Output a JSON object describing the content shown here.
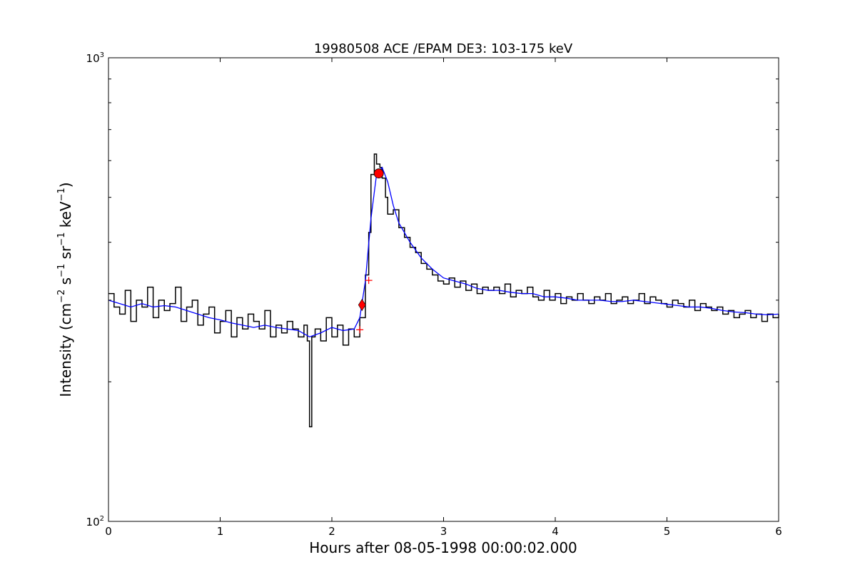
{
  "chart_data": {
    "type": "line",
    "title": "19980508 ACE /EPAM DE3: 103-175 keV",
    "xlabel": "Hours after 08-05-1998 00:00:02.000",
    "ylabel": {
      "base": "Intensity (cm",
      "exp1": "−2",
      "s": " s",
      "exp2": "−1",
      "sr": " sr",
      "exp3": "−1",
      "kev": " keV",
      "exp4": "−1",
      "close": ")"
    },
    "xlim": [
      0,
      6
    ],
    "ylim": [
      100,
      1000
    ],
    "yscale": "log",
    "grid": false,
    "x_ticks": [
      0,
      1,
      2,
      3,
      4,
      5,
      6
    ],
    "x_tick_labels": [
      "0",
      "1",
      "2",
      "3",
      "4",
      "5",
      "6"
    ],
    "y_tick_labels": [
      {
        "value": 100,
        "base": "10",
        "exp": "2"
      },
      {
        "value": 1000,
        "base": "10",
        "exp": "3"
      }
    ],
    "raw_color": "#000000",
    "smooth_color": "#0000ff",
    "marker_color": "#ff0000",
    "series": [
      {
        "style": "steps",
        "color": "#000000",
        "x": [
          0.0,
          0.05,
          0.1,
          0.15,
          0.2,
          0.25,
          0.3,
          0.35,
          0.4,
          0.45,
          0.5,
          0.55,
          0.6,
          0.65,
          0.7,
          0.75,
          0.8,
          0.85,
          0.9,
          0.95,
          1.0,
          1.05,
          1.1,
          1.15,
          1.2,
          1.25,
          1.3,
          1.35,
          1.4,
          1.45,
          1.5,
          1.55,
          1.6,
          1.65,
          1.7,
          1.75,
          1.78,
          1.8,
          1.82,
          1.85,
          1.9,
          1.95,
          2.0,
          2.05,
          2.1,
          2.15,
          2.2,
          2.25,
          2.3,
          2.33,
          2.35,
          2.38,
          2.4,
          2.43,
          2.45,
          2.48,
          2.5,
          2.55,
          2.6,
          2.65,
          2.7,
          2.75,
          2.8,
          2.85,
          2.9,
          2.95,
          3.0,
          3.05,
          3.1,
          3.15,
          3.2,
          3.25,
          3.3,
          3.35,
          3.4,
          3.45,
          3.5,
          3.55,
          3.6,
          3.65,
          3.7,
          3.75,
          3.8,
          3.85,
          3.9,
          3.95,
          4.0,
          4.05,
          4.1,
          4.15,
          4.2,
          4.25,
          4.3,
          4.35,
          4.4,
          4.45,
          4.5,
          4.55,
          4.6,
          4.65,
          4.7,
          4.75,
          4.8,
          4.85,
          4.9,
          4.95,
          5.0,
          5.05,
          5.1,
          5.15,
          5.2,
          5.25,
          5.3,
          5.35,
          5.4,
          5.45,
          5.5,
          5.55,
          5.6,
          5.65,
          5.7,
          5.75,
          5.8,
          5.85,
          5.9,
          5.95,
          6.0
        ],
        "values": [
          310,
          290,
          280,
          315,
          270,
          300,
          290,
          320,
          275,
          300,
          285,
          295,
          320,
          270,
          290,
          300,
          265,
          280,
          290,
          255,
          270,
          285,
          250,
          275,
          260,
          280,
          270,
          260,
          285,
          250,
          265,
          255,
          270,
          260,
          250,
          265,
          245,
          160,
          250,
          260,
          245,
          275,
          250,
          265,
          240,
          260,
          250,
          275,
          340,
          420,
          560,
          620,
          590,
          580,
          550,
          500,
          460,
          470,
          430,
          410,
          390,
          380,
          360,
          350,
          340,
          330,
          325,
          335,
          320,
          330,
          315,
          325,
          310,
          320,
          315,
          320,
          310,
          325,
          305,
          315,
          310,
          320,
          305,
          300,
          315,
          300,
          310,
          295,
          305,
          300,
          310,
          300,
          295,
          305,
          300,
          310,
          295,
          300,
          305,
          295,
          300,
          310,
          295,
          305,
          300,
          295,
          290,
          300,
          295,
          290,
          300,
          285,
          295,
          290,
          285,
          290,
          280,
          285,
          275,
          280,
          285,
          275,
          280,
          270,
          280,
          275,
          280
        ]
      },
      {
        "style": "line",
        "color": "#0000ff",
        "x": [
          0.0,
          0.1,
          0.2,
          0.3,
          0.4,
          0.5,
          0.6,
          0.7,
          0.8,
          0.9,
          1.0,
          1.1,
          1.2,
          1.3,
          1.4,
          1.5,
          1.6,
          1.7,
          1.8,
          1.9,
          2.0,
          2.1,
          2.2,
          2.25,
          2.3,
          2.35,
          2.4,
          2.45,
          2.5,
          2.55,
          2.6,
          2.7,
          2.8,
          2.9,
          3.0,
          3.1,
          3.2,
          3.3,
          3.4,
          3.5,
          3.6,
          3.7,
          3.8,
          3.9,
          4.0,
          4.1,
          4.2,
          4.3,
          4.4,
          4.5,
          4.6,
          4.7,
          4.8,
          4.9,
          5.0,
          5.1,
          5.2,
          5.3,
          5.4,
          5.5,
          5.6,
          5.7,
          5.8,
          5.9,
          6.0
        ],
        "values": [
          300,
          295,
          290,
          295,
          290,
          292,
          290,
          285,
          280,
          275,
          272,
          268,
          265,
          262,
          265,
          262,
          260,
          258,
          250,
          255,
          262,
          258,
          260,
          275,
          330,
          450,
          560,
          580,
          540,
          480,
          440,
          400,
          370,
          350,
          335,
          330,
          325,
          318,
          315,
          315,
          312,
          310,
          310,
          305,
          305,
          303,
          300,
          300,
          300,
          298,
          298,
          300,
          298,
          296,
          294,
          292,
          290,
          290,
          288,
          285,
          283,
          282,
          280,
          279,
          280
        ]
      }
    ],
    "markers": [
      {
        "shape": "circle",
        "x": 2.42,
        "y": 563,
        "color": "#ff0000"
      },
      {
        "shape": "diamond",
        "x": 2.27,
        "y": 293,
        "color": "#ff0000"
      },
      {
        "shape": "plus",
        "x": 2.33,
        "y": 331,
        "color": "#ff0000"
      },
      {
        "shape": "plus",
        "x": 2.25,
        "y": 259,
        "color": "#ff0000"
      }
    ]
  }
}
